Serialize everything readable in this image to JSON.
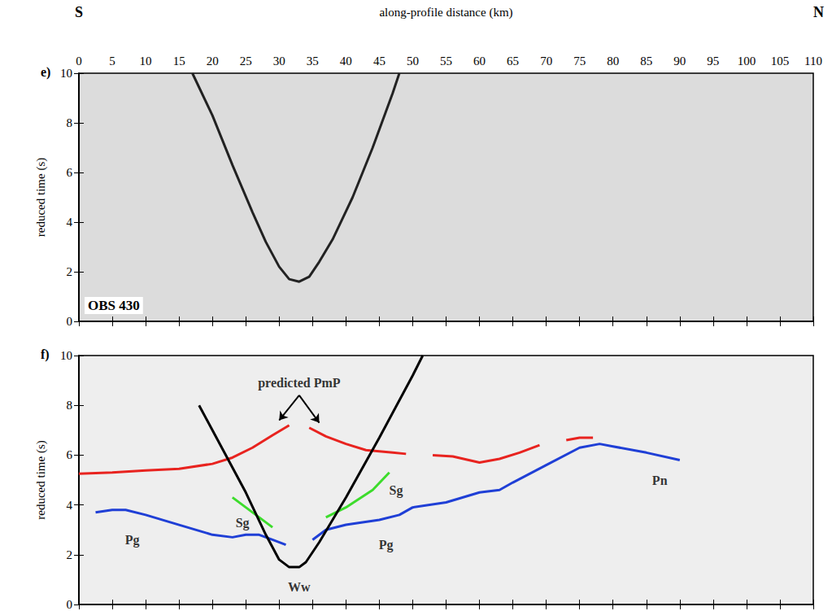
{
  "chart_data": [
    {
      "type": "line",
      "title": "e)",
      "xlabel": "along-profile distance (km)",
      "ylabel": "reduced time (s)",
      "direction_labels": [
        "S",
        "N"
      ],
      "station_label": "OBS 430",
      "xlim": [
        0,
        110
      ],
      "xticks": [
        0,
        5,
        10,
        15,
        20,
        25,
        30,
        35,
        40,
        45,
        50,
        55,
        60,
        65,
        70,
        75,
        80,
        85,
        90,
        95,
        100,
        105,
        110
      ],
      "ylim": [
        0,
        10
      ],
      "yticks": [
        0,
        2,
        4,
        6,
        8,
        10
      ],
      "grid": false,
      "tick_labels": true,
      "series": [
        {
          "color": "#222222",
          "line_style": "solid",
          "marker": "none",
          "x": [
            17,
            20,
            23,
            26,
            28,
            30,
            31.5,
            33,
            34.5,
            36,
            38,
            41,
            44,
            47,
            48
          ],
          "values": [
            10,
            8.3,
            6.3,
            4.4,
            3.2,
            2.2,
            1.7,
            1.6,
            1.8,
            2.4,
            3.3,
            5.0,
            7.0,
            9.2,
            10
          ]
        }
      ],
      "annotations": []
    },
    {
      "type": "line",
      "title": "f)",
      "ylabel": "reduced time (s)",
      "xlim": [
        0,
        110
      ],
      "xticks": [
        0,
        5,
        10,
        15,
        20,
        25,
        30,
        35,
        40,
        45,
        50,
        55,
        60,
        65,
        70,
        75,
        80,
        85,
        90,
        95,
        100,
        105,
        110
      ],
      "ylim": [
        0,
        10
      ],
      "yticks": [
        0,
        2,
        4,
        6,
        8,
        10
      ],
      "grid": false,
      "tick_labels": "y",
      "series": [
        {
          "color": "#e8231f",
          "line_style": "solid",
          "marker": "none",
          "x": [
            0,
            5,
            10,
            15,
            20,
            23,
            26,
            29,
            31.5,
            32,
            34.5,
            37,
            40,
            43,
            47,
            49,
            51,
            53,
            56,
            60,
            63,
            66,
            69,
            71,
            73,
            75,
            77
          ],
          "values": [
            5.25,
            5.3,
            5.38,
            5.45,
            5.65,
            5.9,
            6.3,
            6.8,
            7.2,
            null,
            7.1,
            6.75,
            6.45,
            6.2,
            6.1,
            6.05,
            null,
            6.0,
            5.95,
            5.7,
            5.85,
            6.1,
            6.4,
            null,
            6.6,
            6.7,
            6.7
          ]
        },
        {
          "color": "#1f3fd6",
          "line_style": "solid",
          "marker": "none",
          "x": [
            2.5,
            5,
            7,
            10,
            15,
            20,
            23,
            25,
            27,
            29,
            31
          ],
          "values": [
            3.7,
            3.8,
            3.8,
            3.6,
            3.2,
            2.8,
            2.7,
            2.8,
            2.8,
            2.6,
            2.4
          ]
        },
        {
          "color": "#1f3fd6",
          "line_style": "solid",
          "marker": "none",
          "x": [
            35,
            37,
            40,
            45,
            48,
            50,
            55,
            60,
            63,
            65,
            70,
            75,
            78,
            80,
            85,
            90
          ],
          "values": [
            2.6,
            3.0,
            3.2,
            3.4,
            3.6,
            3.9,
            4.1,
            4.5,
            4.6,
            4.9,
            5.6,
            6.3,
            6.45,
            6.35,
            6.1,
            5.8
          ]
        },
        {
          "color": "#3ddc2c",
          "line_style": "solid",
          "marker": "none",
          "x": [
            23,
            25,
            27,
            29
          ],
          "values": [
            4.3,
            3.9,
            3.5,
            3.1
          ]
        },
        {
          "color": "#3ddc2c",
          "line_style": "solid",
          "marker": "none",
          "x": [
            37,
            40,
            44,
            46.5
          ],
          "values": [
            3.5,
            3.9,
            4.6,
            5.3
          ]
        },
        {
          "color": "#000000",
          "line_style": "solid",
          "marker": "none",
          "x": [
            18,
            20,
            25,
            28,
            30,
            31.5,
            33,
            34,
            36,
            40,
            45,
            50,
            51.5
          ],
          "values": [
            8.0,
            7.0,
            4.5,
            2.8,
            1.8,
            1.5,
            1.5,
            1.7,
            2.5,
            4.3,
            6.7,
            9.2,
            10
          ]
        }
      ],
      "annotations": [
        {
          "text": "predicted PmP",
          "x": 33,
          "y": 8.9,
          "arrows": [
            {
              "from": [
                33,
                8.4
              ],
              "to": [
                30,
                7.4
              ]
            },
            {
              "from": [
                33,
                8.4
              ],
              "to": [
                36,
                7.3
              ]
            }
          ]
        },
        {
          "text": "Pg",
          "x": 8,
          "y": 2.6
        },
        {
          "text": "Pg",
          "x": 46,
          "y": 2.4
        },
        {
          "text": "Sg",
          "x": 24.5,
          "y": 3.3
        },
        {
          "text": "Sg",
          "x": 47.5,
          "y": 4.6
        },
        {
          "text": "Pn",
          "x": 87,
          "y": 5.0
        },
        {
          "text": "Ww",
          "x": 33,
          "y": 0.7
        }
      ]
    }
  ]
}
